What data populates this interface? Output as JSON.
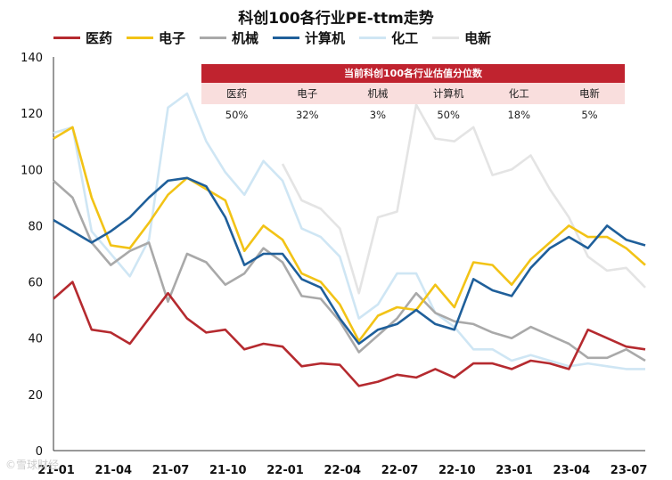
{
  "chart_data": {
    "type": "line",
    "title": "科创100各行业PE-ttm走势",
    "ylim": [
      0,
      140
    ],
    "yticks": [
      0,
      20,
      40,
      60,
      80,
      100,
      120,
      140
    ],
    "x_ticks": [
      {
        "index": 0,
        "label": "21-01"
      },
      {
        "index": 3,
        "label": "21-04"
      },
      {
        "index": 6,
        "label": "21-07"
      },
      {
        "index": 9,
        "label": "21-10"
      },
      {
        "index": 12,
        "label": "22-01"
      },
      {
        "index": 15,
        "label": "22-04"
      },
      {
        "index": 18,
        "label": "22-07"
      },
      {
        "index": 21,
        "label": "22-10"
      },
      {
        "index": 24,
        "label": "23-01"
      },
      {
        "index": 27,
        "label": "23-04"
      },
      {
        "index": 30,
        "label": "23-07"
      }
    ],
    "n_points": 32,
    "series": [
      {
        "name": "医药",
        "color": "#b52a2f",
        "values": [
          54,
          60,
          43,
          42,
          38,
          47,
          56,
          47,
          42,
          43,
          36,
          38,
          37,
          30,
          31,
          30.5,
          23,
          24.5,
          27,
          26,
          29,
          26,
          31,
          31,
          29,
          32,
          31,
          29,
          43,
          40,
          37,
          36
        ]
      },
      {
        "name": "电子",
        "color": "#f2c316",
        "values": [
          111,
          115,
          90,
          73,
          72,
          81,
          91,
          97,
          93,
          89,
          71,
          80,
          75,
          63,
          60,
          52,
          39,
          48,
          51,
          50,
          59,
          51,
          67,
          66,
          59,
          68,
          74,
          80,
          76,
          76,
          72,
          66
        ]
      },
      {
        "name": "机械",
        "color": "#a9a9a9",
        "values": [
          96,
          90,
          74,
          66,
          71,
          74,
          53,
          70,
          67,
          59,
          63,
          72,
          67,
          55,
          54,
          46,
          35,
          41,
          47,
          56,
          49,
          46,
          45,
          42,
          40,
          44,
          41,
          38,
          33,
          33,
          36,
          32
        ]
      },
      {
        "name": "计算机",
        "color": "#1f5f9a",
        "values": [
          82,
          78,
          74,
          78,
          83,
          90,
          96,
          97,
          94,
          83,
          66,
          70,
          70,
          61,
          58,
          47,
          38,
          43,
          45,
          50,
          45,
          43,
          61,
          57,
          55,
          65,
          72,
          76,
          72,
          80,
          75,
          73
        ]
      },
      {
        "name": "化工",
        "color": "#cfe6f4",
        "values": [
          113,
          115,
          78,
          70,
          62,
          75,
          122,
          127,
          110,
          99,
          91,
          103,
          96,
          79,
          76,
          69,
          47,
          52,
          63,
          63,
          49,
          44,
          36,
          36,
          32,
          34,
          32,
          30,
          31,
          30,
          29,
          29
        ]
      },
      {
        "name": "电新",
        "color": "#e4e4e4",
        "values": [
          null,
          null,
          null,
          null,
          null,
          null,
          null,
          null,
          null,
          null,
          null,
          null,
          102,
          89,
          86,
          79,
          56,
          83,
          85,
          123,
          111,
          110,
          115,
          98,
          100,
          105,
          93,
          83,
          69,
          64,
          65,
          58
        ]
      }
    ]
  },
  "table": {
    "header": "当前科创100各行业估值分位数",
    "names": [
      "医药",
      "电子",
      "机械",
      "计算机",
      "化工",
      "电新"
    ],
    "values": [
      "50%",
      "32%",
      "3%",
      "50%",
      "18%",
      "5%"
    ]
  },
  "watermark": "©雪球财经"
}
